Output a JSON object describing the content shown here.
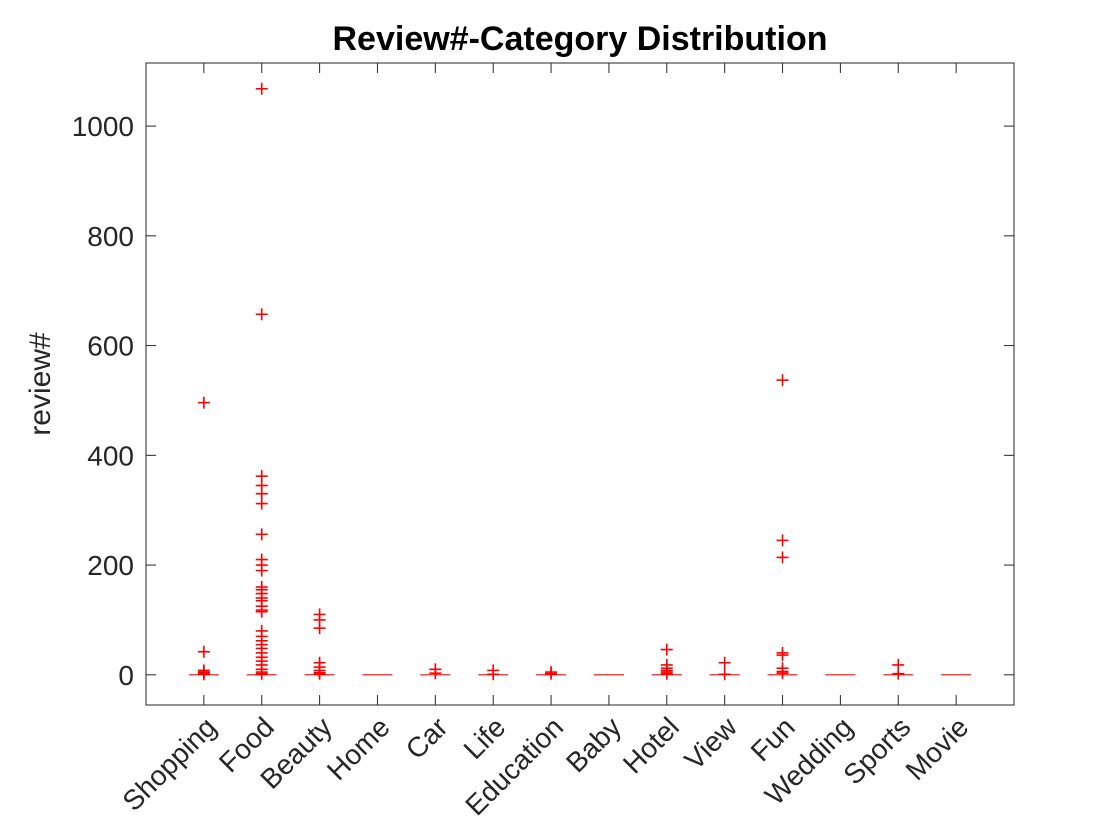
{
  "chart_data": {
    "type": "box",
    "title": "Review#-Category Distribution",
    "xlabel": "",
    "ylabel": "review#",
    "ylim": [
      -55,
      1115
    ],
    "yticks": [
      "0",
      "200",
      "400",
      "600",
      "800",
      "1000"
    ],
    "grid": false,
    "marker_color": "#ff0000",
    "categories": [
      "Shopping",
      "Food",
      "Beauty",
      "Home",
      "Car",
      "Life",
      "Education",
      "Baby",
      "Hotel",
      "View",
      "Fun",
      "Wedding",
      "Sports",
      "Movie"
    ],
    "medians": [
      0,
      0,
      0,
      0,
      0,
      0,
      0,
      0,
      0,
      0,
      0,
      0,
      0,
      0
    ],
    "outliers": [
      [
        496,
        42,
        8,
        5,
        3,
        1
      ],
      [
        1068,
        657,
        362,
        345,
        330,
        312,
        256,
        210,
        200,
        190,
        160,
        155,
        148,
        140,
        135,
        125,
        118,
        115,
        80,
        70,
        62,
        55,
        48,
        40,
        32,
        25,
        18,
        10,
        5,
        2
      ],
      [
        110,
        100,
        85,
        22,
        14,
        8,
        4,
        2
      ],
      [],
      [
        10,
        3
      ],
      [
        8,
        1
      ],
      [
        5,
        2
      ],
      [],
      [
        46,
        18,
        12,
        8,
        5,
        2
      ],
      [
        22,
        1
      ],
      [
        537,
        245,
        214,
        40,
        36,
        12,
        6,
        3
      ],
      [],
      [
        18,
        2
      ],
      []
    ]
  }
}
